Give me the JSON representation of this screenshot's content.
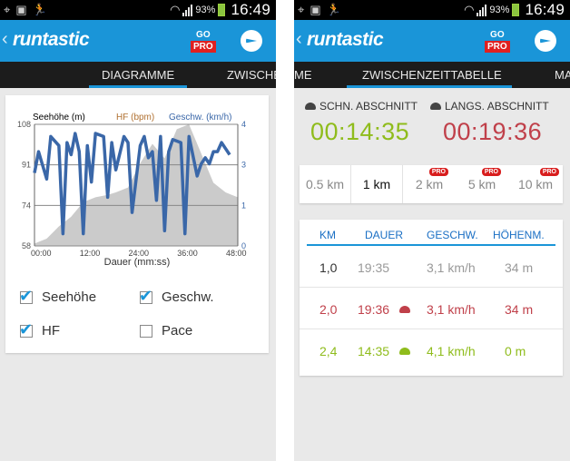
{
  "status_bar": {
    "battery": "93%",
    "time": "16:49"
  },
  "app": {
    "logo": "runtastic",
    "go": "GO",
    "pro": "PRO"
  },
  "left": {
    "tabs": [
      "DIAGRAMME",
      "ZWISCHE"
    ],
    "legend": {
      "altitude": "Seehöhe (m)",
      "hr": "HF (bpm)",
      "speed": "Geschw. (km/h)"
    },
    "x_axis_label": "Dauer (mm:ss)",
    "checkboxes": [
      {
        "label": "Seehöhe",
        "checked": true
      },
      {
        "label": "Geschw.",
        "checked": true
      },
      {
        "label": "HF",
        "checked": true
      },
      {
        "label": "Pace",
        "checked": false
      }
    ]
  },
  "right": {
    "tabs": [
      "ME",
      "ZWISCHENZEITTABELLE",
      "MA"
    ],
    "fast_label": "SCHN. ABSCHNITT",
    "slow_label": "LANGS. ABSCHNITT",
    "fast_time": "00:14:35",
    "slow_time": "00:19:36",
    "segments": [
      {
        "label": "0.5 km",
        "pro": false
      },
      {
        "label": "1 km",
        "pro": false,
        "selected": true
      },
      {
        "label": "2 km",
        "pro": true
      },
      {
        "label": "5 km",
        "pro": true
      },
      {
        "label": "10 km",
        "pro": true
      }
    ],
    "pro_badge": "PRO",
    "table": {
      "headers": [
        "KM",
        "DAUER",
        "GESCHW.",
        "HÖHENM."
      ],
      "rows": [
        {
          "km": "1,0",
          "duration": "19:35",
          "speed": "3,1 km/h",
          "elevation": "34 m",
          "marker": ""
        },
        {
          "km": "2,0",
          "duration": "19:36",
          "speed": "3,1 km/h",
          "elevation": "34 m",
          "marker": "slow"
        },
        {
          "km": "2,4",
          "duration": "14:35",
          "speed": "4,1 km/h",
          "elevation": "0 m",
          "marker": "fast"
        }
      ]
    }
  },
  "colors": {
    "blue": "#1a95d8",
    "green": "#8fbc1c",
    "red": "#c0404a",
    "line": "#3a67a8"
  },
  "chart_data": {
    "type": "line",
    "xlabel": "Dauer (mm:ss)",
    "x_ticks": [
      "00:00",
      "12:00",
      "24:00",
      "36:00",
      "48:00"
    ],
    "y_left_ticks": [
      "108",
      "91",
      "74",
      "58"
    ],
    "y_right_ticks": [
      "4",
      "3",
      "1",
      "0"
    ],
    "y_left_range": [
      58,
      108
    ],
    "y_right_range": [
      0,
      4
    ],
    "series": [
      {
        "name": "Seehöhe (m)",
        "type": "area",
        "axis": "left",
        "color": "#b9b9b9",
        "x": [
          0,
          3,
          6,
          9,
          12,
          15,
          18,
          20,
          23,
          26,
          29,
          32,
          35,
          38,
          41,
          44,
          47,
          50
        ],
        "y": [
          59,
          61,
          66,
          70,
          76,
          78,
          79,
          80,
          82,
          92,
          100,
          94,
          106,
          108,
          96,
          84,
          80,
          78
        ]
      },
      {
        "name": "Geschw. (km/h)",
        "type": "line",
        "axis": "right",
        "color": "#3a67a8",
        "x": [
          0,
          1,
          3,
          4,
          6,
          7,
          8,
          9,
          10,
          11,
          12,
          13,
          14,
          15,
          17,
          18,
          19,
          20,
          22,
          23,
          24,
          26,
          27,
          28,
          29,
          30,
          31,
          32,
          33,
          34,
          36,
          37,
          38,
          40,
          41,
          42,
          43,
          44,
          45,
          46,
          47,
          48
        ],
        "y": [
          2.4,
          3.1,
          2.2,
          3.6,
          3.3,
          0.4,
          3.4,
          3.0,
          3.7,
          3.1,
          0.4,
          3.3,
          2.1,
          3.7,
          3.6,
          1.6,
          3.4,
          2.5,
          3.6,
          3.4,
          1.1,
          3.3,
          3.6,
          2.9,
          3.1,
          1.5,
          3.6,
          0.5,
          3.1,
          3.5,
          3.4,
          0.4,
          3.6,
          2.3,
          2.7,
          2.9,
          2.7,
          3.1,
          3.1,
          3.4,
          3.2,
          3.0
        ]
      }
    ]
  }
}
